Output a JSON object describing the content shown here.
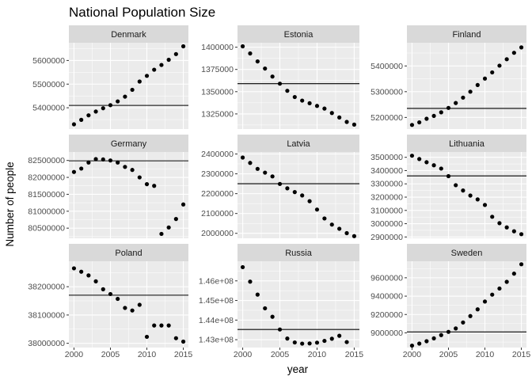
{
  "chart_data": {
    "type": "scatter",
    "title": "National Population Size",
    "xlabel": "year",
    "ylabel": "Number of people",
    "facet_layout": "3x3 grid, free y scales",
    "xlim": [
      1999.3,
      2015.7
    ],
    "x_ticks": [
      2000,
      2005,
      2010,
      2015
    ],
    "background": "#ebebeb",
    "strip_color": "#d9d9d9",
    "grid_color": "#ffffff",
    "point_color": "#000000",
    "facets": [
      {
        "name": "Denmark",
        "ylim": [
          5310000,
          5675000
        ],
        "y_ticks": [
          5400000,
          5500000,
          5600000
        ],
        "reference_line": 5410000,
        "x": [
          2000,
          2001,
          2002,
          2003,
          2004,
          2005,
          2006,
          2007,
          2008,
          2009,
          2010,
          2011,
          2012,
          2013,
          2014,
          2015
        ],
        "y": [
          5330000,
          5349000,
          5368000,
          5384000,
          5398000,
          5411000,
          5427000,
          5447000,
          5476000,
          5511000,
          5535000,
          5561000,
          5581000,
          5603000,
          5627000,
          5660000
        ]
      },
      {
        "name": "Estonia",
        "ylim": [
          1308000,
          1405000
        ],
        "y_ticks": [
          1325000,
          1350000,
          1375000,
          1400000
        ],
        "reference_line": 1359000,
        "x": [
          2000,
          2001,
          2002,
          2003,
          2004,
          2005,
          2006,
          2007,
          2008,
          2009,
          2010,
          2011,
          2012,
          2013,
          2014,
          2015
        ],
        "y": [
          1401000,
          1393000,
          1384000,
          1376000,
          1367000,
          1359000,
          1351000,
          1344000,
          1340000,
          1337000,
          1334000,
          1331000,
          1326000,
          1321000,
          1316000,
          1313000
        ]
      },
      {
        "name": "Finland",
        "ylim": [
          5155000,
          5490000
        ],
        "y_ticks": [
          5200000,
          5300000,
          5400000
        ],
        "reference_line": 5235000,
        "x": [
          2000,
          2001,
          2002,
          2003,
          2004,
          2005,
          2006,
          2007,
          2008,
          2009,
          2010,
          2011,
          2012,
          2013,
          2014,
          2015
        ],
        "y": [
          5171000,
          5181000,
          5195000,
          5206000,
          5220000,
          5237000,
          5256000,
          5277000,
          5300000,
          5326000,
          5351000,
          5375000,
          5401000,
          5426000,
          5451000,
          5472000
        ]
      },
      {
        "name": "Germany",
        "ylim": [
          80200000,
          82750000
        ],
        "y_ticks": [
          80500000,
          81000000,
          81500000,
          82000000,
          82500000
        ],
        "reference_line": 82490000,
        "x": [
          2000,
          2001,
          2002,
          2003,
          2004,
          2005,
          2006,
          2007,
          2008,
          2009,
          2010,
          2011,
          2012,
          2013,
          2014,
          2015
        ],
        "y": [
          82160000,
          82260000,
          82440000,
          82540000,
          82530000,
          82500000,
          82440000,
          82310000,
          82220000,
          82000000,
          81800000,
          81750000,
          80330000,
          80520000,
          80770000,
          81200000
        ]
      },
      {
        "name": "Latvia",
        "ylim": [
          1975000,
          2410000
        ],
        "y_ticks": [
          2000000,
          2100000,
          2200000,
          2300000,
          2400000
        ],
        "reference_line": 2250000,
        "x": [
          2000,
          2001,
          2002,
          2003,
          2004,
          2005,
          2006,
          2007,
          2008,
          2009,
          2010,
          2011,
          2012,
          2013,
          2014,
          2015
        ],
        "y": [
          2382000,
          2355000,
          2325000,
          2306000,
          2287000,
          2249000,
          2227000,
          2208000,
          2191000,
          2162000,
          2120000,
          2075000,
          2044000,
          2023000,
          2001000,
          1986000
        ]
      },
      {
        "name": "Lithuania",
        "ylim": [
          2890000,
          3540000
        ],
        "y_ticks": [
          2900000,
          3000000,
          3100000,
          3200000,
          3300000,
          3400000,
          3500000
        ],
        "reference_line": 3360000,
        "x": [
          2000,
          2001,
          2002,
          2003,
          2004,
          2005,
          2006,
          2007,
          2008,
          2009,
          2010,
          2011,
          2012,
          2013,
          2014,
          2015
        ],
        "y": [
          3512000,
          3487000,
          3463000,
          3440000,
          3415000,
          3358000,
          3290000,
          3250000,
          3212000,
          3183000,
          3141000,
          3052000,
          3004000,
          2972000,
          2943000,
          2921000
        ]
      },
      {
        "name": "Poland",
        "ylim": [
          37985000,
          38290000
        ],
        "y_ticks": [
          38000000,
          38100000,
          38200000
        ],
        "reference_line": 38170000,
        "x": [
          2000,
          2001,
          2002,
          2003,
          2004,
          2005,
          2006,
          2007,
          2008,
          2009,
          2010,
          2011,
          2012,
          2013,
          2014,
          2015
        ],
        "y": [
          38265000,
          38253000,
          38240000,
          38219000,
          38191000,
          38174000,
          38157000,
          38125000,
          38116000,
          38136000,
          38023000,
          38063000,
          38063000,
          38063000,
          38018000,
          38006000
        ]
      },
      {
        "name": "Russia",
        "ylim": [
          142600000,
          147000000
        ],
        "y_ticks": [
          143000000,
          144000000,
          145000000,
          146000000
        ],
        "y_tick_labels": [
          "1.43e+08",
          "1.44e+08",
          "1.45e+08",
          "1.46e+08"
        ],
        "reference_line": 143520000,
        "x": [
          2000,
          2001,
          2002,
          2003,
          2004,
          2005,
          2006,
          2007,
          2008,
          2009,
          2010,
          2011,
          2012,
          2013,
          2014,
          2015
        ],
        "y": [
          146700000,
          145960000,
          145300000,
          144600000,
          144170000,
          143520000,
          143060000,
          142860000,
          142800000,
          142810000,
          142850000,
          142940000,
          143050000,
          143200000,
          142880000,
          null
        ]
      },
      {
        "name": "Sweden",
        "ylim": [
          8840000,
          9780000
        ],
        "y_ticks": [
          9000000,
          9200000,
          9400000,
          9600000
        ],
        "reference_line": 9010000,
        "x": [
          2000,
          2001,
          2002,
          2003,
          2004,
          2005,
          2006,
          2007,
          2008,
          2009,
          2010,
          2011,
          2012,
          2013,
          2014,
          2015
        ],
        "y": [
          8861000,
          8883000,
          8909000,
          8940000,
          8976000,
          9011000,
          9048000,
          9113000,
          9183000,
          9256000,
          9341000,
          9416000,
          9483000,
          9556000,
          9645000,
          9747000
        ]
      }
    ]
  }
}
